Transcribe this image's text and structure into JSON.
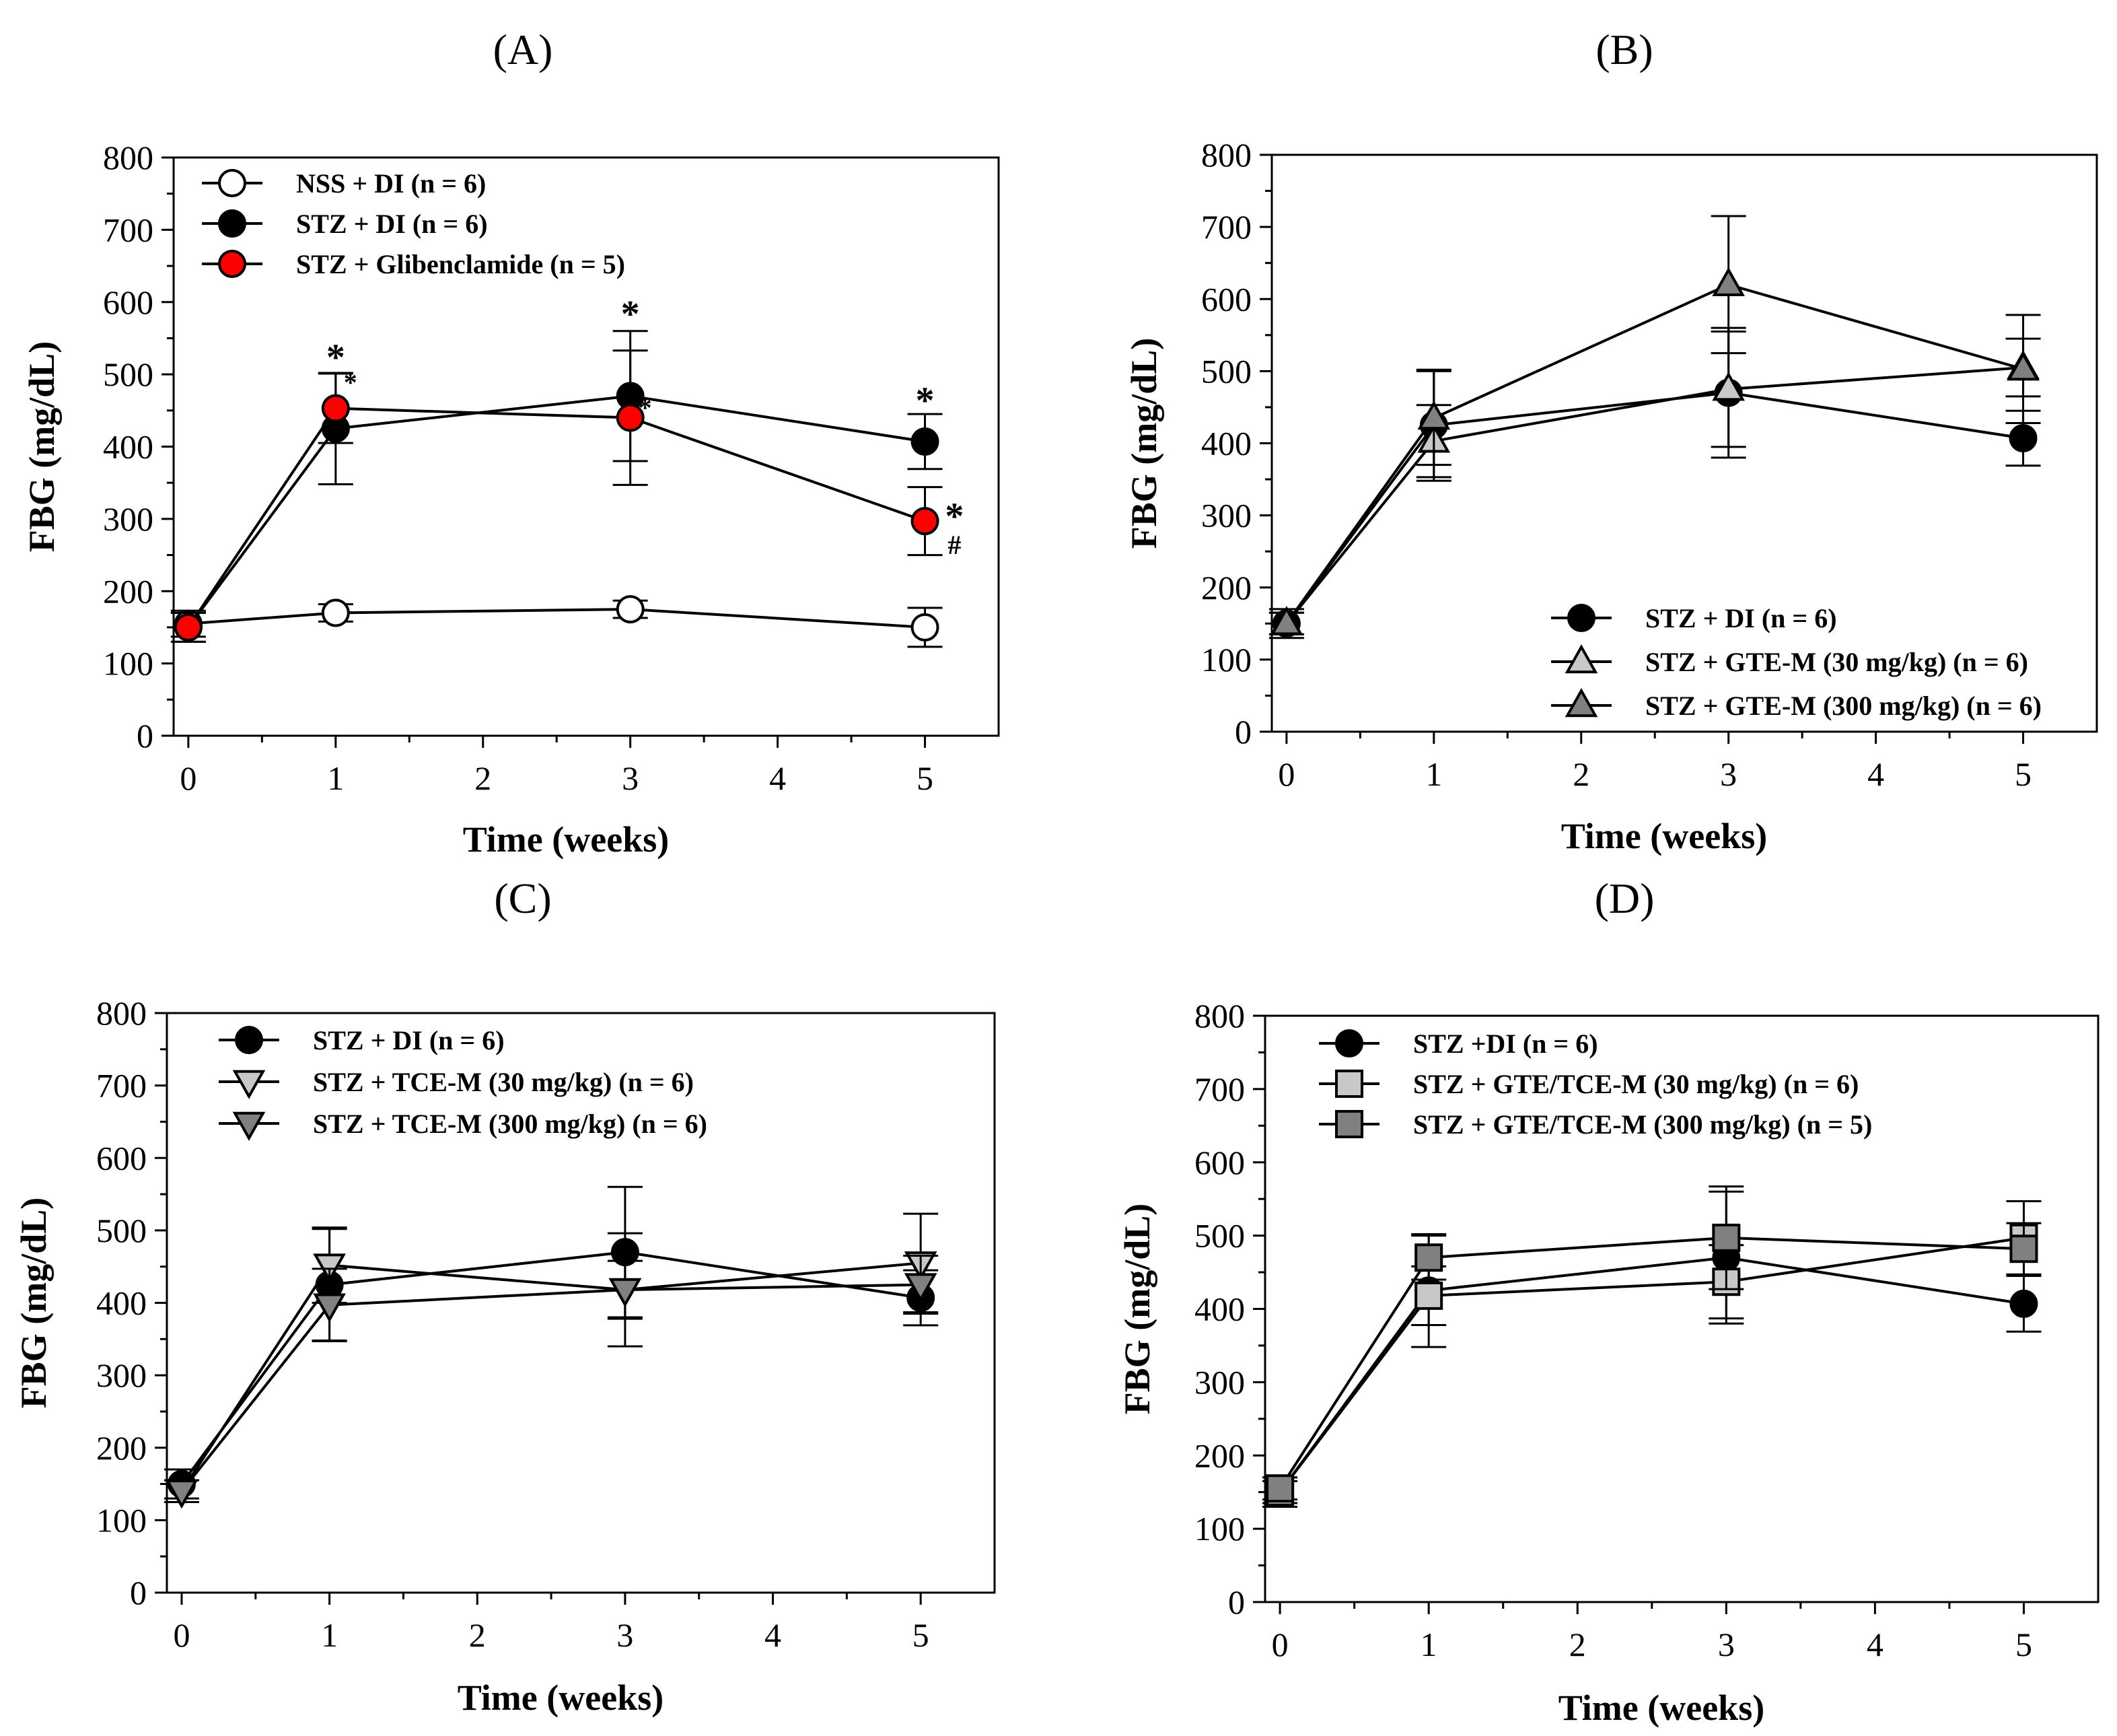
{
  "figure": {
    "colors": {
      "open": "#ffffff",
      "black": "#000000",
      "red": "#ff0000",
      "light_gray": "#c8c8c8",
      "dark_gray": "#808080"
    }
  },
  "chart_data": [
    {
      "type": "line",
      "panel": "(A)",
      "title": "(A)",
      "xlabel": "Time (weeks)",
      "ylabel": "FBG (mg/dL)",
      "xlim": [
        -0.1,
        5.5
      ],
      "ylim": [
        0,
        800
      ],
      "xticks": [
        0,
        1,
        2,
        3,
        4,
        5
      ],
      "yticks": [
        0,
        100,
        200,
        300,
        400,
        500,
        600,
        700,
        800
      ],
      "legend_position": "top-left",
      "series": [
        {
          "name": "NSS + DI (n = 6)",
          "marker": "circle",
          "fill": "open",
          "x": [
            0,
            1,
            3,
            5
          ],
          "values": [
            155,
            170,
            175,
            150
          ],
          "errors": [
            18,
            12,
            12,
            27
          ]
        },
        {
          "name": "STZ + DI (n = 6)",
          "marker": "circle",
          "fill": "black",
          "x": [
            0,
            1,
            3,
            5
          ],
          "values": [
            150,
            425,
            470,
            407
          ],
          "errors": [
            20,
            77,
            90,
            38
          ]
        },
        {
          "name": "STZ + Glibenclamide (n = 5)",
          "marker": "circle",
          "fill": "red",
          "x": [
            0,
            1,
            3,
            5
          ],
          "values": [
            150,
            453,
            440,
            297
          ],
          "errors": [
            20,
            48,
            93,
            47
          ]
        }
      ],
      "annotations": [
        {
          "text": "*",
          "x": 1,
          "y": 525
        },
        {
          "text": "*",
          "x": 3,
          "y": 585
        },
        {
          "text": "*",
          "x": 5,
          "y": 465
        },
        {
          "text": "*",
          "x": 5.2,
          "y": 305
        },
        {
          "text": "#",
          "x": 5.2,
          "y": 270,
          "small": true
        },
        {
          "text": "*",
          "x": 1.1,
          "y": 495,
          "small": true
        },
        {
          "text": "*",
          "x": 3.1,
          "y": 460,
          "small": true
        }
      ]
    },
    {
      "type": "line",
      "panel": "(B)",
      "title": "(B)",
      "xlabel": "Time (weeks)",
      "ylabel": "FBG (mg/dL)",
      "xlim": [
        -0.1,
        5.5
      ],
      "ylim": [
        0,
        800
      ],
      "xticks": [
        0,
        1,
        2,
        3,
        4,
        5
      ],
      "yticks": [
        0,
        100,
        200,
        300,
        400,
        500,
        600,
        700,
        800
      ],
      "legend_position": "bottom-right",
      "series": [
        {
          "name": "STZ + DI (n = 6)",
          "marker": "circle",
          "fill": "black",
          "x": [
            0,
            1,
            3,
            5
          ],
          "values": [
            150,
            425,
            470,
            407
          ],
          "errors": [
            20,
            77,
            90,
            38
          ]
        },
        {
          "name": "STZ + GTE-M (30 mg/kg) (n = 6)",
          "marker": "triangle-up",
          "fill": "light_gray",
          "x": [
            0,
            1,
            3,
            5
          ],
          "values": [
            150,
            403,
            475,
            505
          ],
          "errors": [
            15,
            50,
            80,
            40
          ]
        },
        {
          "name": "STZ + GTE-M (300 mg/kg) (n = 6)",
          "marker": "triangle-up",
          "fill": "dark_gray",
          "x": [
            0,
            1,
            3,
            5
          ],
          "values": [
            150,
            435,
            620,
            503
          ],
          "errors": [
            15,
            65,
            95,
            75
          ]
        }
      ]
    },
    {
      "type": "line",
      "panel": "(C)",
      "title": "(C)",
      "xlabel": "Time (weeks)",
      "ylabel": "FBG (mg/dL)",
      "xlim": [
        -0.1,
        5.5
      ],
      "ylim": [
        0,
        800
      ],
      "xticks": [
        0,
        1,
        2,
        3,
        4,
        5
      ],
      "yticks": [
        0,
        100,
        200,
        300,
        400,
        500,
        600,
        700,
        800
      ],
      "legend_position": "top-left",
      "series": [
        {
          "name": "STZ + DI  (n = 6)",
          "marker": "circle",
          "fill": "black",
          "x": [
            0,
            1,
            3,
            5
          ],
          "values": [
            150,
            425,
            470,
            407
          ],
          "errors": [
            20,
            77,
            90,
            38
          ]
        },
        {
          "name": "STZ + TCE-M (30 mg/kg) (n = 6)",
          "marker": "triangle-down",
          "fill": "light_gray",
          "x": [
            0,
            1,
            3,
            5
          ],
          "values": [
            140,
            452,
            418,
            455
          ],
          "errors": [
            15,
            52,
            40,
            68
          ]
        },
        {
          "name": "STZ + TCE-M (300 mg/kg) (n = 6)",
          "marker": "triangle-down",
          "fill": "dark_gray",
          "x": [
            0,
            1,
            3,
            5
          ],
          "values": [
            140,
            397,
            418,
            425
          ],
          "errors": [
            15,
            50,
            78,
            40
          ]
        }
      ]
    },
    {
      "type": "line",
      "panel": "(D)",
      "title": "(D)",
      "xlabel": "Time (weeks)",
      "ylabel": "FBG (mg/dL)",
      "xlim": [
        -0.1,
        5.5
      ],
      "ylim": [
        0,
        800
      ],
      "xticks": [
        0,
        1,
        2,
        3,
        4,
        5
      ],
      "yticks": [
        0,
        100,
        200,
        300,
        400,
        500,
        600,
        700,
        800
      ],
      "legend_position": "top-left",
      "series": [
        {
          "name": "STZ +DI (n = 6)",
          "marker": "circle",
          "fill": "black",
          "x": [
            0,
            1,
            3,
            5
          ],
          "values": [
            150,
            425,
            470,
            407
          ],
          "errors": [
            20,
            77,
            90,
            38
          ]
        },
        {
          "name": "STZ + GTE/TCE-M (30 mg/kg) (n = 6)",
          "marker": "square",
          "fill": "light_gray",
          "x": [
            0,
            1,
            3,
            5
          ],
          "values": [
            150,
            418,
            437,
            497
          ],
          "errors": [
            15,
            40,
            50,
            50
          ]
        },
        {
          "name": "STZ + GTE/TCE-M (300 mg/kg) (n = 5)",
          "marker": "square",
          "fill": "dark_gray",
          "x": [
            0,
            1,
            3,
            5
          ],
          "values": [
            155,
            470,
            497,
            482
          ],
          "errors": [
            15,
            30,
            70,
            35
          ]
        }
      ]
    }
  ]
}
